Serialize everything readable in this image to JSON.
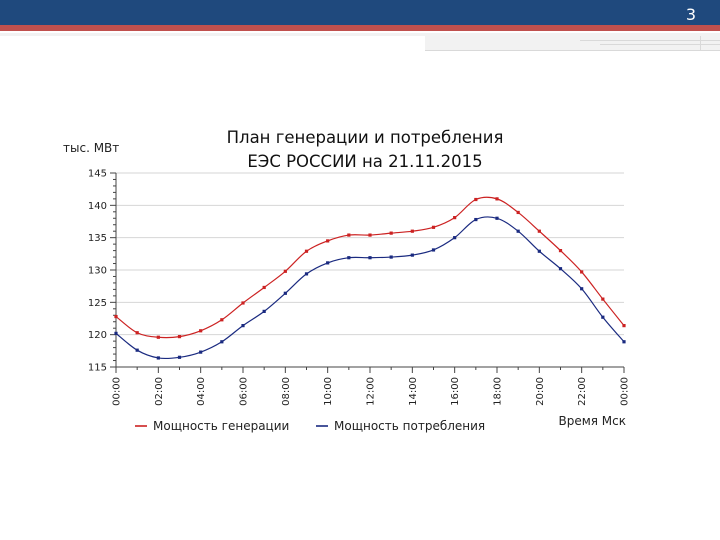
{
  "slide": {
    "number": "3"
  },
  "colors": {
    "header": "#1f497d",
    "stripe": "#c0504d",
    "generation": "#cc2222",
    "consumption": "#1a2a80"
  },
  "chart_data": {
    "type": "line",
    "title_line1": "План генерации и потребления",
    "title_line2": "ЕЭС РОССИИ на 21.11.2015",
    "ylabel": "тыс. МВт",
    "xlabel": "Время Мск",
    "ylim": [
      115,
      145
    ],
    "yticks": [
      "115",
      "120",
      "125",
      "130",
      "135",
      "140",
      "145"
    ],
    "xticks": [
      "00:00",
      "02:00",
      "04:00",
      "06:00",
      "08:00",
      "10:00",
      "12:00",
      "14:00",
      "16:00",
      "18:00",
      "20:00",
      "22:00",
      "00:00"
    ],
    "x_hours": [
      0,
      1,
      2,
      3,
      4,
      5,
      6,
      7,
      8,
      9,
      10,
      11,
      12,
      13,
      14,
      15,
      16,
      17,
      18,
      19,
      20,
      21,
      22,
      23,
      24
    ],
    "grid": true,
    "legend": "bottom",
    "series": [
      {
        "name": "Мощность генерации",
        "color": "#cc2222",
        "values": [
          122.8,
          120.3,
          119.6,
          119.7,
          120.6,
          122.3,
          124.9,
          127.3,
          129.8,
          132.9,
          134.5,
          135.4,
          135.4,
          135.7,
          136.0,
          136.6,
          138.1,
          140.9,
          141.0,
          138.9,
          136.0,
          133.0,
          129.7,
          125.5,
          121.4
        ]
      },
      {
        "name": "Мощность потребления",
        "color": "#1a2a80",
        "values": [
          120.2,
          117.6,
          116.4,
          116.5,
          117.3,
          118.9,
          121.4,
          123.6,
          126.4,
          129.4,
          131.1,
          131.9,
          131.9,
          132.0,
          132.3,
          133.1,
          135.0,
          137.8,
          138.0,
          136.0,
          132.9,
          130.2,
          127.1,
          122.7,
          118.9
        ]
      }
    ]
  }
}
